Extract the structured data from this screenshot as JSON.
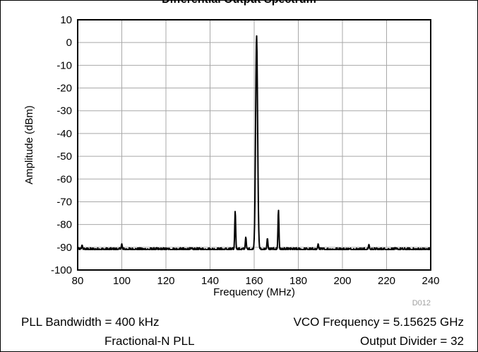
{
  "chart_data": {
    "type": "line",
    "title": "Differential Output Spectrum",
    "xlabel": "Frequency (MHz)",
    "ylabel": "Amplitude (dBm)",
    "xlim": [
      80,
      240
    ],
    "ylim": [
      -100,
      10
    ],
    "x_ticks": [
      "80",
      "100",
      "120",
      "140",
      "160",
      "180",
      "200",
      "220",
      "240"
    ],
    "y_ticks": [
      "10",
      "0",
      "-10",
      "-20",
      "-30",
      "-40",
      "-50",
      "-60",
      "-70",
      "-80",
      "-90",
      "-100"
    ],
    "grid": true,
    "noise_floor_dbm": -91,
    "peaks": [
      {
        "x": 161.1,
        "y": 3
      },
      {
        "x": 151.4,
        "y": -74
      },
      {
        "x": 171.0,
        "y": -73.5
      },
      {
        "x": 156.2,
        "y": -85.5
      },
      {
        "x": 166.0,
        "y": -86
      },
      {
        "x": 100.0,
        "y": -88.5
      },
      {
        "x": 82.0,
        "y": -89
      },
      {
        "x": 189.0,
        "y": -88.5
      },
      {
        "x": 212.0,
        "y": -88.8
      }
    ],
    "figure_code": "D012"
  },
  "notes": {
    "left_line1": "PLL Bandwidth = 400 kHz",
    "left_line2": "Fractional-N PLL",
    "right_line1": "VCO Frequency = 5.15625 GHz",
    "right_line2": "Output Divider = 32"
  }
}
